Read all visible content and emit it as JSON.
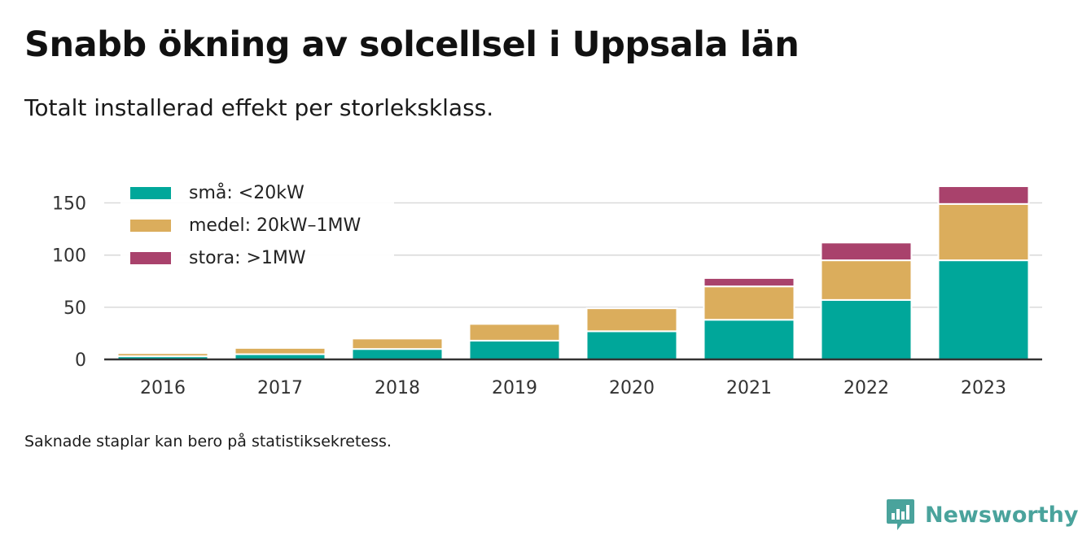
{
  "header": {
    "title": "Snabb ökning av solcellsel i Uppsala län",
    "subtitle": "Totalt installerad effekt per storleksklass."
  },
  "footnote": "Saknade staplar kan bero på statistiksekretess.",
  "brand": {
    "name": "Newsworthy",
    "icon": "newsworthy-logo-icon",
    "color": "#4aa39c"
  },
  "colors": {
    "sma": "#00a79a",
    "medel": "#dbad5c",
    "stora": "#a9426c",
    "grid": "#d9d9d9",
    "axis": "#333333"
  },
  "chart_data": {
    "type": "bar",
    "stacked": true,
    "categories": [
      "2016",
      "2017",
      "2018",
      "2019",
      "2020",
      "2021",
      "2022",
      "2023"
    ],
    "series": [
      {
        "name": "små: <20kW",
        "color": "#00a79a",
        "values": [
          3,
          5,
          10,
          18,
          27,
          38,
          57,
          95
        ]
      },
      {
        "name": "medel: 20kW–1MW",
        "color": "#dbad5c",
        "values": [
          3,
          6,
          10,
          16,
          22,
          32,
          38,
          54
        ]
      },
      {
        "name": "stora: >1MW",
        "color": "#a9426c",
        "values": [
          0,
          0,
          0,
          0,
          0,
          8,
          17,
          17
        ]
      }
    ],
    "title": "Snabb ökning av solcellsel i Uppsala län",
    "subtitle": "Totalt installerad effekt per storleksklass.",
    "xlabel": "",
    "ylabel": "",
    "ylim": [
      0,
      165
    ],
    "yticks": [
      0,
      50,
      100,
      150
    ],
    "grid": true,
    "legend_position": "top-left"
  }
}
